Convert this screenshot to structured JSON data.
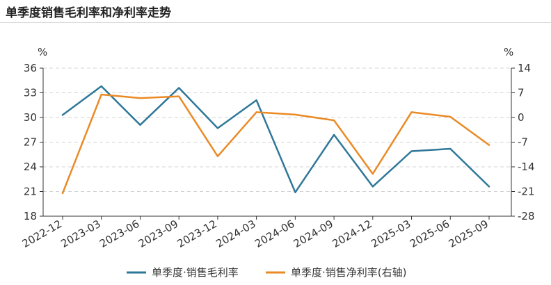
{
  "header": {
    "title": "单季度销售毛利率和净利率走势"
  },
  "chart_data": {
    "type": "line",
    "categories": [
      "2022-12",
      "2023-03",
      "2023-06",
      "2023-09",
      "2023-12",
      "2024-03",
      "2024-06",
      "2024-09",
      "2024-12",
      "2025-03",
      "2025-06",
      "2025-09"
    ],
    "series": [
      {
        "name": "单季度·销售毛利率",
        "axis": "left",
        "color": "#2e7798",
        "values": [
          30.3,
          33.8,
          29.1,
          33.6,
          28.7,
          32.1,
          20.9,
          27.9,
          21.6,
          25.9,
          26.2,
          21.6
        ]
      },
      {
        "name": "单季度·销售净利率(右轴)",
        "axis": "right",
        "color": "#ea8a25",
        "values": [
          -21.5,
          6.5,
          5.5,
          6.0,
          -11.0,
          1.5,
          0.8,
          -0.8,
          -16.0,
          1.5,
          0.2,
          -7.8
        ]
      }
    ],
    "y_left": {
      "unit": "%",
      "ylim": [
        18,
        36
      ],
      "ticks": [
        "36",
        "33",
        "30",
        "27",
        "24",
        "21",
        "18"
      ]
    },
    "y_right": {
      "unit": "%",
      "ylim": [
        -28,
        14
      ],
      "ticks": [
        "14",
        "7",
        "0",
        "-7",
        "-14",
        "-21",
        "-28"
      ]
    },
    "grid": "horizontal-dashed",
    "legend": "bottom-center"
  }
}
